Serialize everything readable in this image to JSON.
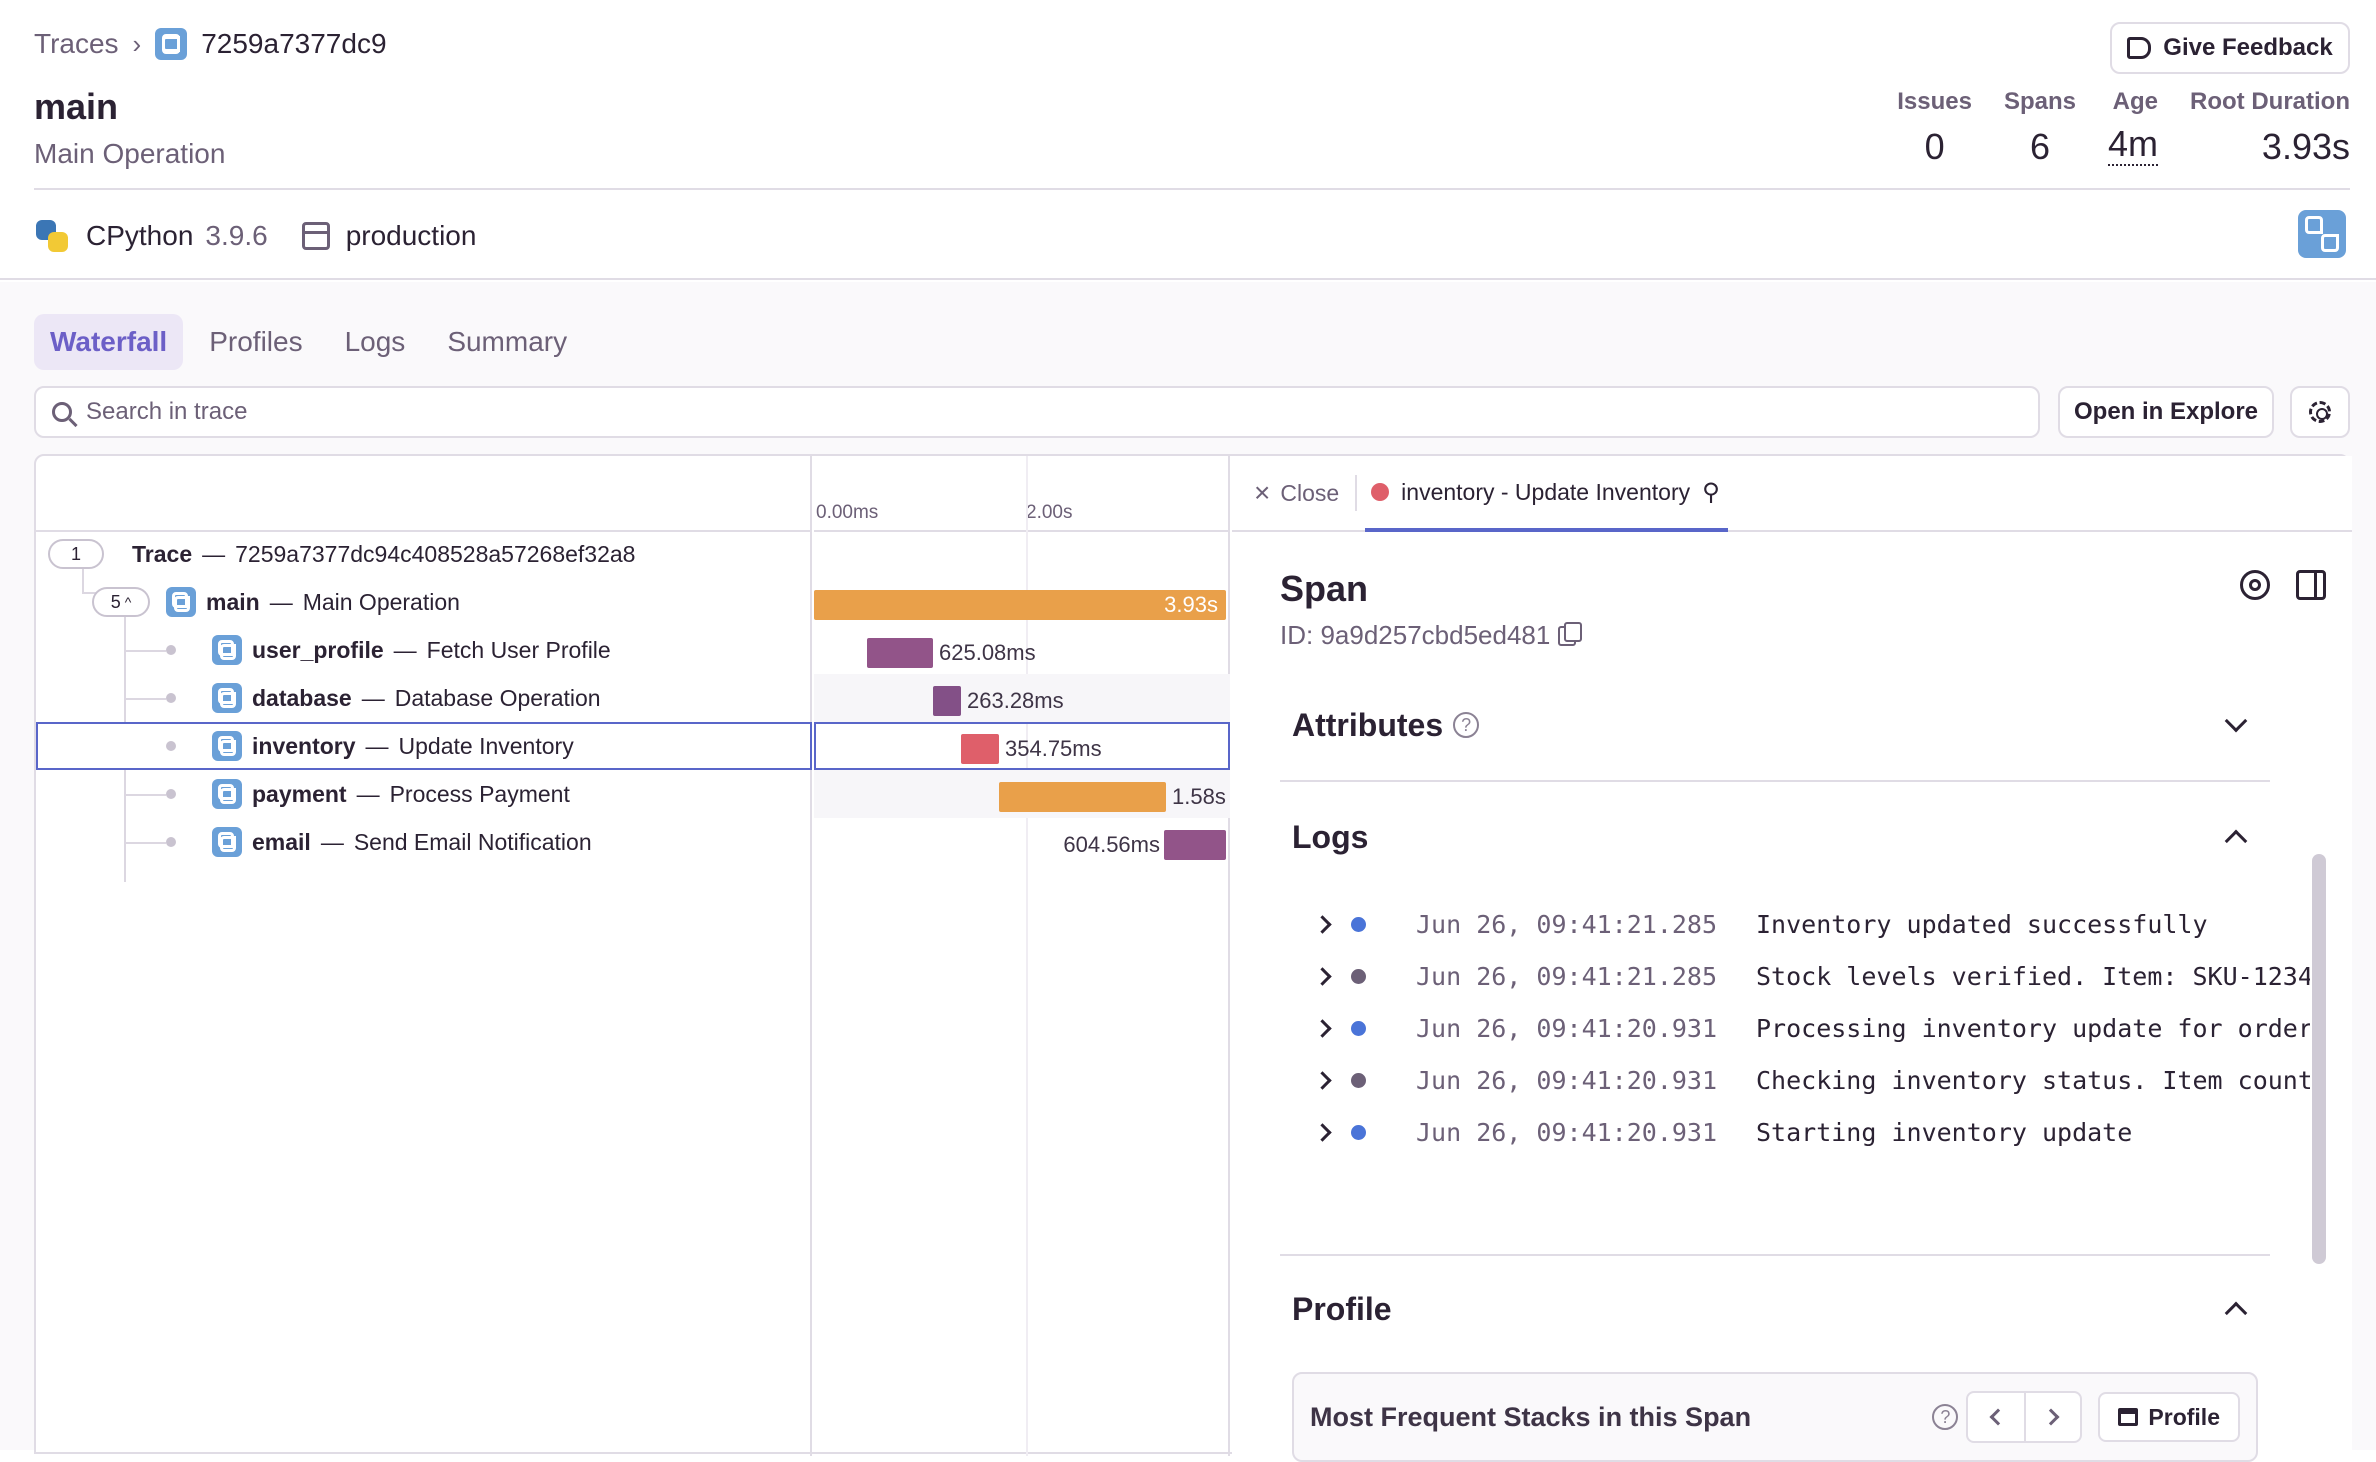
{
  "breadcrumb": {
    "root": "Traces",
    "trace_short": "7259a7377dc9"
  },
  "header": {
    "title": "main",
    "subtitle": "Main Operation",
    "feedback_label": "Give Feedback",
    "stats": [
      {
        "label": "Issues",
        "value": "0"
      },
      {
        "label": "Spans",
        "value": "6"
      },
      {
        "label": "Age",
        "value": "4m"
      },
      {
        "label": "Root Duration",
        "value": "3.93s"
      }
    ],
    "runtime": "CPython",
    "runtime_version": "3.9.6",
    "environment": "production"
  },
  "tabs": [
    {
      "label": "Waterfall",
      "active": true
    },
    {
      "label": "Profiles",
      "active": false
    },
    {
      "label": "Logs",
      "active": false
    },
    {
      "label": "Summary",
      "active": false
    }
  ],
  "search": {
    "placeholder": "Search in trace",
    "value": ""
  },
  "toolbar": {
    "explore_label": "Open in Explore"
  },
  "timeline": {
    "ticks": [
      "0.00ms",
      "2.00s"
    ],
    "total_seconds": 3.93
  },
  "trace": {
    "count": "1",
    "label": "Trace",
    "id": "7259a7377dc94c408528a57268ef32a8",
    "root": {
      "count": "5",
      "op": "main",
      "desc": "Main Operation",
      "duration": "3.93s",
      "start_s": 0.0,
      "dur_s": 3.93,
      "color": "#e9a04a"
    },
    "spans": [
      {
        "op": "user_profile",
        "desc": "Fetch User Profile",
        "duration": "625.08ms",
        "start_s": 0.5,
        "dur_s": 0.625,
        "color": "#925489",
        "label_side": "right"
      },
      {
        "op": "database",
        "desc": "Database Operation",
        "duration": "263.28ms",
        "start_s": 1.125,
        "dur_s": 0.263,
        "color": "#835087",
        "label_side": "right"
      },
      {
        "op": "inventory",
        "desc": "Update Inventory",
        "duration": "354.75ms",
        "start_s": 1.39,
        "dur_s": 0.355,
        "color": "#df5f6a",
        "label_side": "right",
        "selected": true
      },
      {
        "op": "payment",
        "desc": "Process Payment",
        "duration": "1.58s",
        "start_s": 1.745,
        "dur_s": 1.58,
        "color": "#e9a04a",
        "label_side": "right"
      },
      {
        "op": "email",
        "desc": "Send Email Notification",
        "duration": "604.56ms",
        "start_s": 3.3,
        "dur_s": 0.605,
        "color": "#925489",
        "label_side": "left"
      }
    ]
  },
  "details": {
    "close_label": "Close",
    "tab_label": "inventory - Update Inventory",
    "span_title": "Span",
    "span_id": "ID: 9a9d257cbd5ed481",
    "attributes_title": "Attributes",
    "logs_title": "Logs",
    "logs": [
      {
        "time": "Jun 26, 09:41:21.285",
        "message": "Inventory updated successfully",
        "color": "#4a74d8"
      },
      {
        "time": "Jun 26, 09:41:21.285",
        "message": "Stock levels verified. Item: SKU-1234",
        "color": "#6c6077"
      },
      {
        "time": "Jun 26, 09:41:20.931",
        "message": "Processing inventory update for order",
        "color": "#4a74d8"
      },
      {
        "time": "Jun 26, 09:41:20.931",
        "message": "Checking inventory status. Item count",
        "color": "#6c6077"
      },
      {
        "time": "Jun 26, 09:41:20.931",
        "message": "Starting inventory update",
        "color": "#4a74d8"
      }
    ],
    "profile_title": "Profile",
    "stacks_title": "Most Frequent Stacks in this Span",
    "profile_btn": "Profile"
  }
}
